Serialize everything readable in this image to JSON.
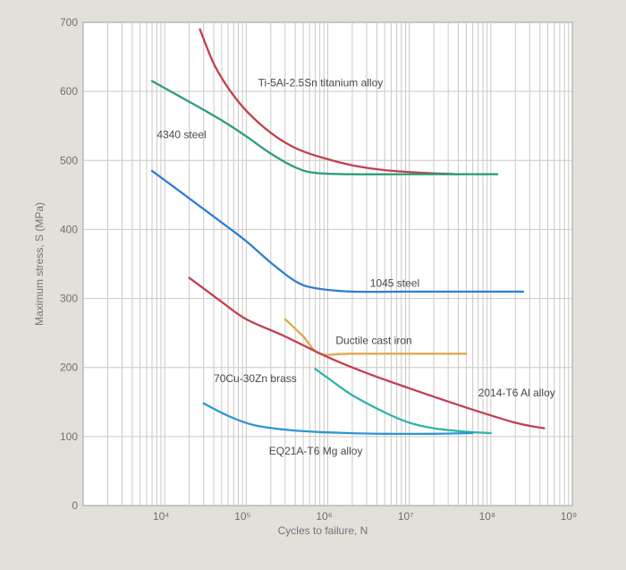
{
  "chart_data": {
    "type": "line",
    "title": "",
    "xlabel": "Cycles to failure, N",
    "ylabel": "Maximum stress, S (MPa)",
    "x_scale": "log",
    "xlim": [
      1000,
      1000000000
    ],
    "ylim": [
      0,
      700
    ],
    "x_ticks": [
      {
        "value": 10000,
        "label": "10⁴"
      },
      {
        "value": 100000,
        "label": "10⁵"
      },
      {
        "value": 1000000,
        "label": "10⁶"
      },
      {
        "value": 10000000,
        "label": "10⁷"
      },
      {
        "value": 100000000,
        "label": "10⁸"
      },
      {
        "value": 1000000000,
        "label": "10⁹"
      }
    ],
    "y_ticks": [
      {
        "value": 0,
        "label": "0"
      },
      {
        "value": 100,
        "label": "100"
      },
      {
        "value": 200,
        "label": "200"
      },
      {
        "value": 300,
        "label": "300"
      },
      {
        "value": 400,
        "label": "400"
      },
      {
        "value": 500,
        "label": "500"
      },
      {
        "value": 600,
        "label": "600"
      },
      {
        "value": 700,
        "label": "700"
      }
    ],
    "grid": true,
    "series": [
      {
        "name": "Ti-5Al-2.5Sn titanium alloy",
        "color": "#c2404f",
        "points": [
          [
            27000,
            690
          ],
          [
            40000,
            640
          ],
          [
            60000,
            605
          ],
          [
            100000,
            572
          ],
          [
            200000,
            540
          ],
          [
            400000,
            518
          ],
          [
            800000,
            505
          ],
          [
            2000000,
            493
          ],
          [
            5000000,
            486
          ],
          [
            15000000,
            482
          ],
          [
            40000000,
            480
          ]
        ]
      },
      {
        "name": "4340 steel",
        "color": "#2e9e78",
        "points": [
          [
            7000,
            615
          ],
          [
            20000,
            585
          ],
          [
            50000,
            558
          ],
          [
            100000,
            535
          ],
          [
            200000,
            510
          ],
          [
            400000,
            490
          ],
          [
            700000,
            482
          ],
          [
            2000000,
            480
          ],
          [
            20000000,
            480
          ],
          [
            120000000,
            480
          ]
        ]
      },
      {
        "name": "1045 steel",
        "color": "#2f7fd1",
        "points": [
          [
            7000,
            485
          ],
          [
            20000,
            445
          ],
          [
            50000,
            410
          ],
          [
            100000,
            383
          ],
          [
            200000,
            352
          ],
          [
            400000,
            325
          ],
          [
            700000,
            315
          ],
          [
            2000000,
            310
          ],
          [
            10000000,
            310
          ],
          [
            50000000,
            310
          ],
          [
            250000000,
            310
          ]
        ]
      },
      {
        "name": "Ductile cast iron",
        "color": "#e0a84a",
        "points": [
          [
            300000,
            270
          ],
          [
            500000,
            245
          ],
          [
            800000,
            220
          ],
          [
            2000000,
            220
          ],
          [
            50000000,
            220
          ]
        ]
      },
      {
        "name": "2014-T6 Al alloy",
        "color": "#c2404f",
        "points": [
          [
            20000,
            330
          ],
          [
            50000,
            295
          ],
          [
            100000,
            270
          ],
          [
            300000,
            245
          ],
          [
            1000000,
            215
          ],
          [
            3000000,
            192
          ],
          [
            10000000,
            170
          ],
          [
            50000000,
            142
          ],
          [
            200000000,
            120
          ],
          [
            450000000,
            112
          ]
        ]
      },
      {
        "name": "70Cu-30Zn brass",
        "color": "#2fb5a8",
        "points": [
          [
            700000,
            198
          ],
          [
            1000000,
            185
          ],
          [
            2000000,
            160
          ],
          [
            5000000,
            135
          ],
          [
            10000000,
            120
          ],
          [
            20000000,
            112
          ],
          [
            50000000,
            107
          ],
          [
            100000000,
            105
          ]
        ]
      },
      {
        "name": "EQ21A-T6 Mg alloy",
        "color": "#2c96d6",
        "points": [
          [
            30000,
            148
          ],
          [
            60000,
            130
          ],
          [
            120000,
            117
          ],
          [
            300000,
            110
          ],
          [
            1000000,
            106
          ],
          [
            5000000,
            104
          ],
          [
            20000000,
            104
          ],
          [
            60000000,
            105
          ]
        ]
      }
    ],
    "annotations": [
      {
        "series": "Ti-5Al-2.5Sn titanium alloy",
        "text": "Ti-5Al-2.5Sn titanium alloy",
        "x": 140000,
        "y": 607
      },
      {
        "series": "4340 steel",
        "text": "4340 steel",
        "x": 8000,
        "y": 532
      },
      {
        "series": "1045 steel",
        "text": "1045 steel",
        "x": 3300000,
        "y": 317
      },
      {
        "series": "Ductile cast iron",
        "text": "Ductile cast iron",
        "x": 1250000,
        "y": 234
      },
      {
        "series": "70Cu-30Zn brass",
        "text": "70Cu-30Zn brass",
        "x": 40000,
        "y": 179
      },
      {
        "series": "2014-T6 Al alloy",
        "text": "2014-T6 Al alloy",
        "x": 70000000,
        "y": 158
      },
      {
        "series": "EQ21A-T6 Mg alloy",
        "text": "EQ21A-T6 Mg alloy",
        "x": 190000,
        "y": 74
      }
    ]
  }
}
